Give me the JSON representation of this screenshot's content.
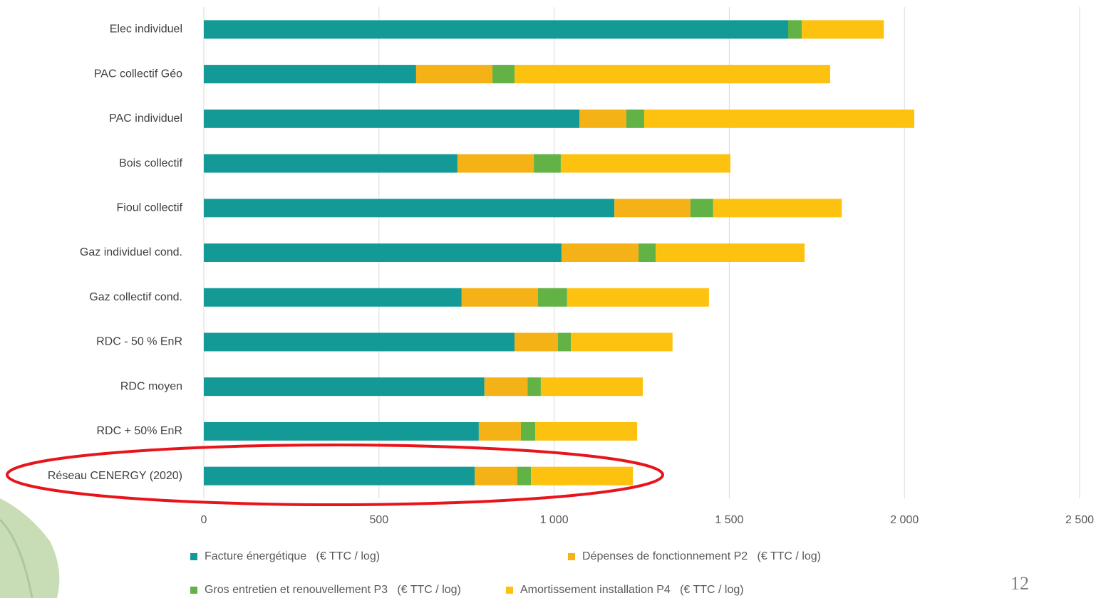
{
  "chart_data": {
    "type": "stacked-bar-horizontal",
    "categories": [
      "Elec individuel",
      "PAC collectif Géo",
      "PAC individuel",
      "Bois collectif",
      "Fioul collectif",
      "Gaz individuel cond.",
      "Gaz collectif cond.",
      "RDC - 50 % EnR",
      "RDC moyen",
      "RDC + 50% EnR",
      "Réseau CENERGY (2020)"
    ],
    "series": [
      {
        "name": "Facture énergétique   (€ TTC / log)",
        "color": "#139a97",
        "values": [
          1668,
          606,
          1072,
          724,
          1172,
          1021,
          736,
          887,
          801,
          785,
          773
        ]
      },
      {
        "name": "Dépenses de fonctionnement P2   (€ TTC / log)",
        "color": "#f5b216",
        "values": [
          0,
          218,
          134,
          218,
          217,
          220,
          218,
          124,
          123,
          120,
          122
        ]
      },
      {
        "name": "Gros entretien et renouvellement P3   (€ TTC / log)",
        "color": "#62b246",
        "values": [
          39,
          63,
          51,
          77,
          65,
          49,
          83,
          37,
          38,
          41,
          39
        ]
      },
      {
        "name": "Amortissement installation P4   (€ TTC / log)",
        "color": "#fdc20f",
        "values": [
          234,
          901,
          771,
          484,
          367,
          425,
          405,
          290,
          291,
          291,
          291
        ]
      }
    ],
    "xlim": [
      0,
      2500
    ],
    "xticks": [
      0,
      500,
      {
        "value": 1000,
        "label": "1 000"
      },
      {
        "value": 1500,
        "label": "1 500"
      },
      {
        "value": 2000,
        "label": "2 000"
      },
      {
        "value": 2500,
        "label": "2 500"
      }
    ],
    "grid": true
  },
  "page_number": "12"
}
